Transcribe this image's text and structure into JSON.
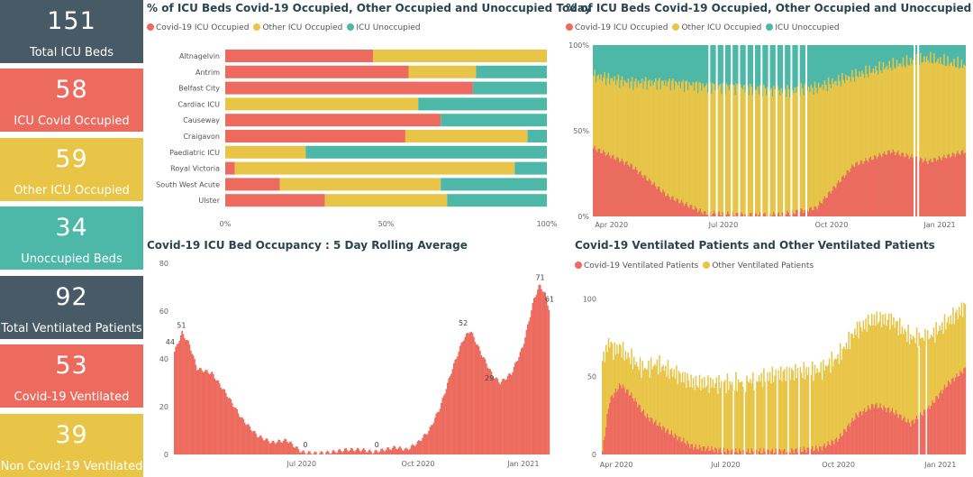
{
  "colors": {
    "covid": "#EC6B5E",
    "other": "#E8C547",
    "unocc": "#4DB8A8",
    "dark": "#475A66"
  },
  "kpis": [
    {
      "value": "151",
      "label": "Total ICU Beds",
      "color": "#475A66"
    },
    {
      "value": "58",
      "label": "ICU Covid Occupied",
      "color": "#EC6B5E"
    },
    {
      "value": "59",
      "label": "Other ICU Occupied",
      "color": "#E8C547"
    },
    {
      "value": "34",
      "label": "Unoccupied Beds",
      "color": "#4DB8A8"
    },
    {
      "value": "92",
      "label": "Total Ventilated Patients",
      "color": "#475A66"
    },
    {
      "value": "53",
      "label": "Covid-19 Ventilated",
      "color": "#EC6B5E"
    },
    {
      "value": "39",
      "label": "Non Covid-19 Ventilated",
      "color": "#E8C547"
    }
  ],
  "legend3": [
    "Covid-19 ICU Occupied",
    "Other ICU Occupied",
    "ICU Unoccupied"
  ],
  "legend2": [
    "Covid-19 Ventilated Patients",
    "Other Ventilated Patients"
  ],
  "chart_data": [
    {
      "type": "bar",
      "orientation": "horizontal",
      "stacked": "percent",
      "title": "% of ICU Beds Covid-19 Occupied, Other Occupied and Unoccupied Today",
      "categories": [
        "Altnagelvin",
        "Antrim",
        "Belfast City",
        "Cardiac ICU",
        "Causeway",
        "Craigavon",
        "Paediatric ICU",
        "Royal Victoria",
        "South West Acute",
        "Ulster"
      ],
      "series": [
        {
          "name": "Covid-19 ICU Occupied",
          "values": [
            46,
            57,
            77,
            0,
            67,
            56,
            0,
            3,
            17,
            31
          ]
        },
        {
          "name": "Other ICU Occupied",
          "values": [
            54,
            21,
            0,
            60,
            0,
            38,
            25,
            87,
            50,
            38
          ]
        },
        {
          "name": "ICU Unoccupied",
          "values": [
            0,
            22,
            23,
            40,
            33,
            6,
            75,
            10,
            33,
            31
          ]
        }
      ],
      "xticks": [
        "0%",
        "50%",
        "100%"
      ],
      "xlim": [
        0,
        100
      ],
      "legend": "top-left"
    },
    {
      "type": "area",
      "stacked": "percent",
      "title": "% of ICU Beds Covid-19 Occupied, Other Occupied and Unoccupied",
      "x": [
        "Apr 2020",
        "May 2020",
        "Jun 2020",
        "Jul 2020",
        "Aug 2020",
        "Sep 2020",
        "Oct 2020",
        "Nov 2020",
        "Dec 2020",
        "Jan 2021",
        "Feb 2021"
      ],
      "series": [
        {
          "name": "Covid-19 ICU Occupied",
          "values": [
            40,
            30,
            12,
            2,
            1,
            1,
            5,
            30,
            38,
            32,
            38
          ]
        },
        {
          "name": "Other ICU Occupied",
          "values": [
            42,
            48,
            66,
            74,
            74,
            72,
            70,
            52,
            50,
            60,
            50
          ]
        }
      ],
      "yticks": [
        "0%",
        "50%",
        "100%"
      ],
      "xticks": [
        "Apr 2020",
        "Jul 2020",
        "Oct 2020",
        "Jan 2021"
      ],
      "legend": "top-left"
    },
    {
      "type": "bar",
      "title": "Covid-19 ICU Bed Occupancy : 5 Day Rolling Average",
      "x": [
        "Mar 2020",
        "Apr 2020",
        "May 2020",
        "Jun 2020",
        "Jul 2020",
        "Aug 2020",
        "Sep 2020",
        "Oct 2020",
        "Nov 2020",
        "Dec 2020",
        "Jan 2021",
        "Feb 2021"
      ],
      "values": [
        44,
        51,
        34,
        14,
        3,
        0,
        2,
        7,
        45,
        40,
        30,
        71
      ],
      "annotations": [
        "44",
        "51",
        "0",
        "0",
        "52",
        "29",
        "71",
        "61"
      ],
      "yticks": [
        "0",
        "20",
        "40",
        "60",
        "80"
      ],
      "ylim": [
        0,
        80
      ],
      "xticks": [
        "Jul 2020",
        "Oct 2020",
        "Jan 2021"
      ]
    },
    {
      "type": "bar",
      "stacked": true,
      "title": "Covid-19 Ventilated Patients and Other Ventilated Patients",
      "x": [
        "Apr 2020",
        "May 2020",
        "Jun 2020",
        "Jul 2020",
        "Aug 2020",
        "Sep 2020",
        "Oct 2020",
        "Nov 2020",
        "Dec 2020",
        "Jan 2021",
        "Feb 2021"
      ],
      "series": [
        {
          "name": "Covid-19 Ventilated Patients",
          "values": [
            40,
            20,
            5,
            1,
            1,
            3,
            10,
            30,
            25,
            40,
            55
          ]
        },
        {
          "name": "Other Ventilated Patients",
          "values": [
            28,
            38,
            55,
            50,
            45,
            48,
            52,
            48,
            55,
            40,
            40
          ]
        }
      ],
      "yticks": [
        "0",
        "50",
        "100"
      ],
      "ylim": [
        0,
        110
      ],
      "xticks": [
        "Apr 2020",
        "Jul 2020",
        "Oct 2020",
        "Jan 2021"
      ],
      "legend": "top-left"
    }
  ]
}
